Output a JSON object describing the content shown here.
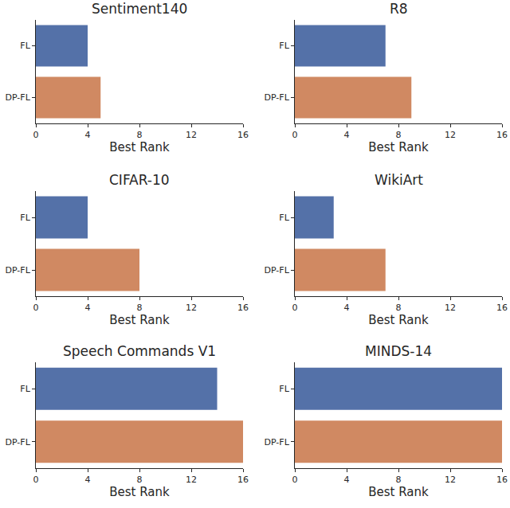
{
  "chart_data": [
    {
      "type": "bar",
      "title": "Sentiment140",
      "orientation": "horizontal",
      "categories": [
        "FL",
        "DP-FL"
      ],
      "values": [
        4,
        5
      ],
      "colors": [
        "#5471a8",
        "#d08962"
      ],
      "xlabel": "Best Rank",
      "xlim": [
        0,
        16
      ],
      "xticks": [
        0,
        4,
        8,
        12,
        16
      ],
      "grid": false
    },
    {
      "type": "bar",
      "title": "R8",
      "orientation": "horizontal",
      "categories": [
        "FL",
        "DP-FL"
      ],
      "values": [
        7,
        9
      ],
      "colors": [
        "#5471a8",
        "#d08962"
      ],
      "xlabel": "Best Rank",
      "xlim": [
        0,
        16
      ],
      "xticks": [
        0,
        4,
        8,
        12,
        16
      ],
      "grid": false
    },
    {
      "type": "bar",
      "title": "CIFAR-10",
      "orientation": "horizontal",
      "categories": [
        "FL",
        "DP-FL"
      ],
      "values": [
        4,
        8
      ],
      "colors": [
        "#5471a8",
        "#d08962"
      ],
      "xlabel": "Best Rank",
      "xlim": [
        0,
        16
      ],
      "xticks": [
        0,
        4,
        8,
        12,
        16
      ],
      "grid": false
    },
    {
      "type": "bar",
      "title": "WikiArt",
      "orientation": "horizontal",
      "categories": [
        "FL",
        "DP-FL"
      ],
      "values": [
        3,
        7
      ],
      "colors": [
        "#5471a8",
        "#d08962"
      ],
      "xlabel": "Best Rank",
      "xlim": [
        0,
        16
      ],
      "xticks": [
        0,
        4,
        8,
        12,
        16
      ],
      "grid": false
    },
    {
      "type": "bar",
      "title": "Speech Commands V1",
      "orientation": "horizontal",
      "categories": [
        "FL",
        "DP-FL"
      ],
      "values": [
        14,
        16
      ],
      "colors": [
        "#5471a8",
        "#d08962"
      ],
      "xlabel": "Best Rank",
      "xlim": [
        0,
        16
      ],
      "xticks": [
        0,
        4,
        8,
        12,
        16
      ],
      "grid": false
    },
    {
      "type": "bar",
      "title": "MINDS-14",
      "orientation": "horizontal",
      "categories": [
        "FL",
        "DP-FL"
      ],
      "values": [
        16,
        16
      ],
      "colors": [
        "#5471a8",
        "#d08962"
      ],
      "xlabel": "Best Rank",
      "xlim": [
        0,
        16
      ],
      "xticks": [
        0,
        4,
        8,
        12,
        16
      ],
      "grid": false
    }
  ]
}
